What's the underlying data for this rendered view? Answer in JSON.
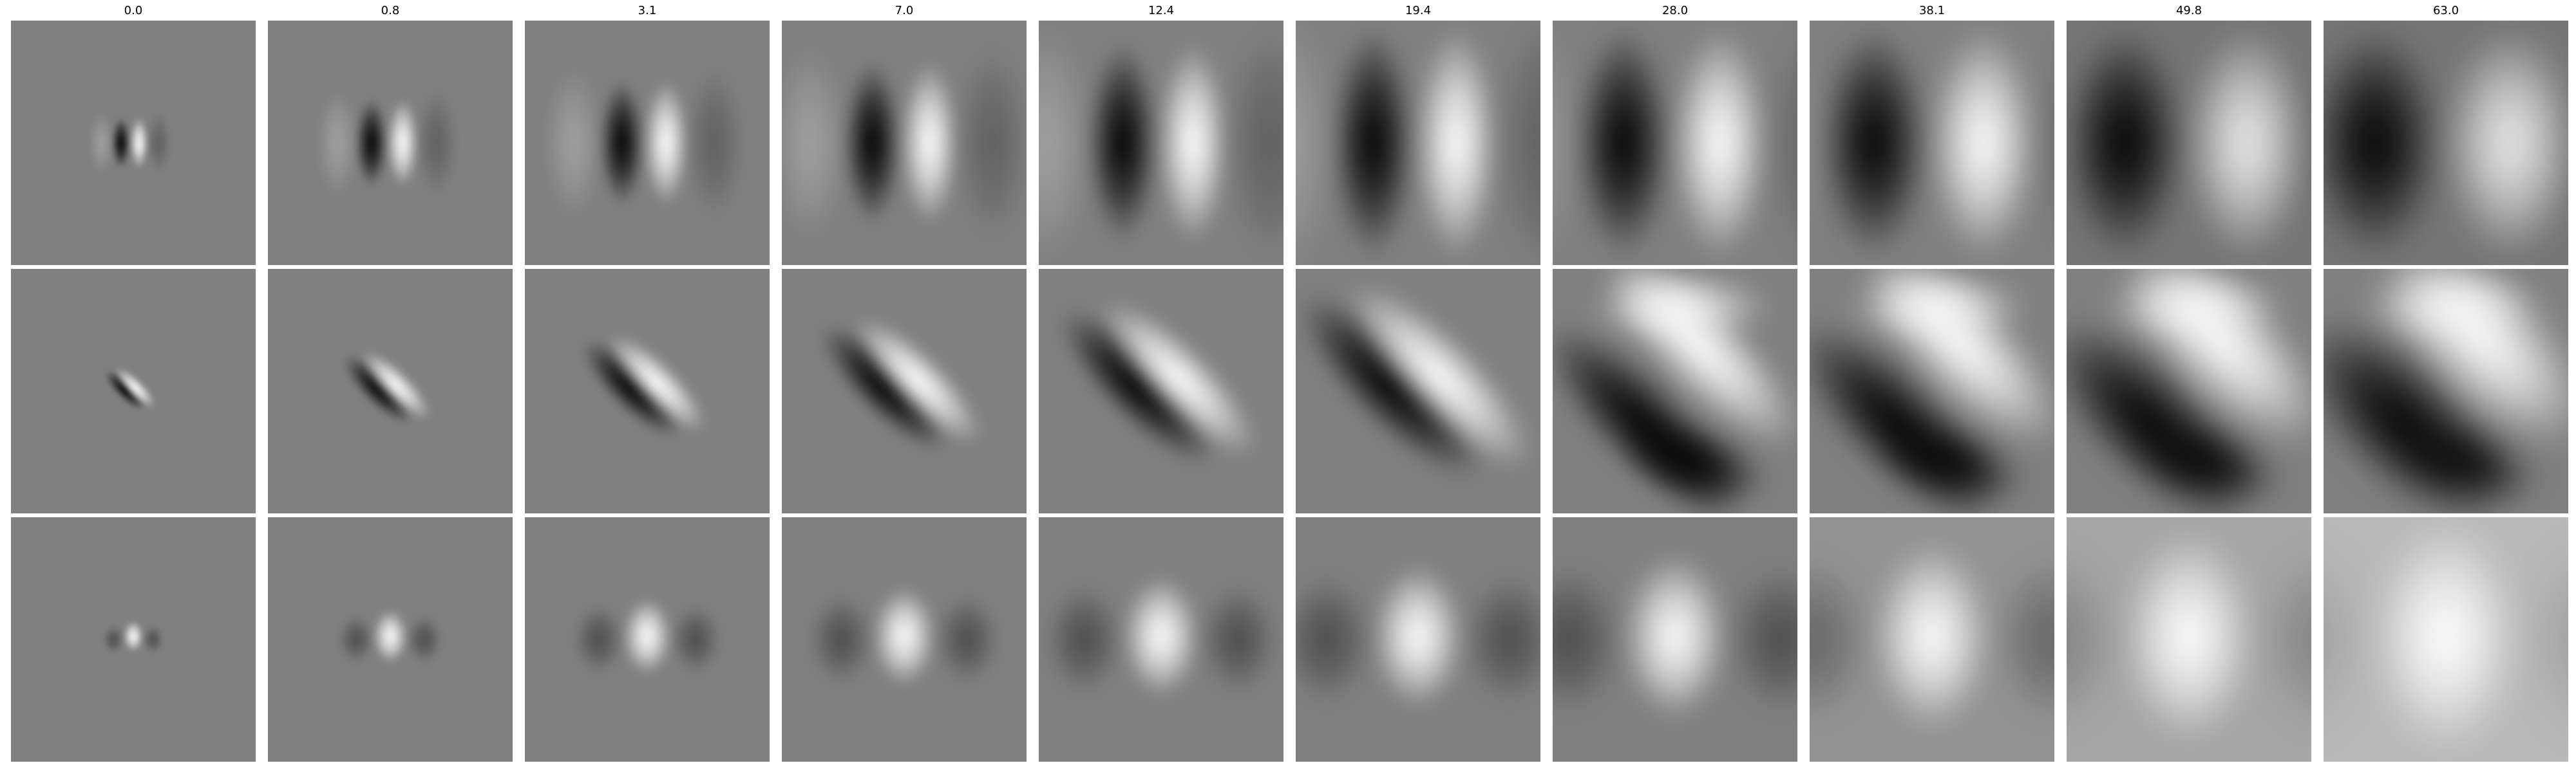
{
  "column_titles": [
    "0.0",
    "0.8",
    "3.1",
    "7.0",
    "12.4",
    "19.4",
    "28.0",
    "38.1",
    "49.8",
    "63.0"
  ],
  "grid": {
    "rows": 3,
    "cols": 10
  },
  "panel_rows": [
    {
      "name": "row-1",
      "pattern": "vertical-dark-light-pair",
      "description_color": "grayscale"
    },
    {
      "name": "row-2",
      "pattern": "diagonal-dark-light-pair",
      "description_color": "grayscale"
    },
    {
      "name": "row-3",
      "pattern": "central-bright-blob",
      "description_color": "grayscale"
    }
  ],
  "colors": {
    "background": "#ffffff",
    "panel_gray": "#808080",
    "dark": "#000000",
    "light": "#ffffff"
  }
}
